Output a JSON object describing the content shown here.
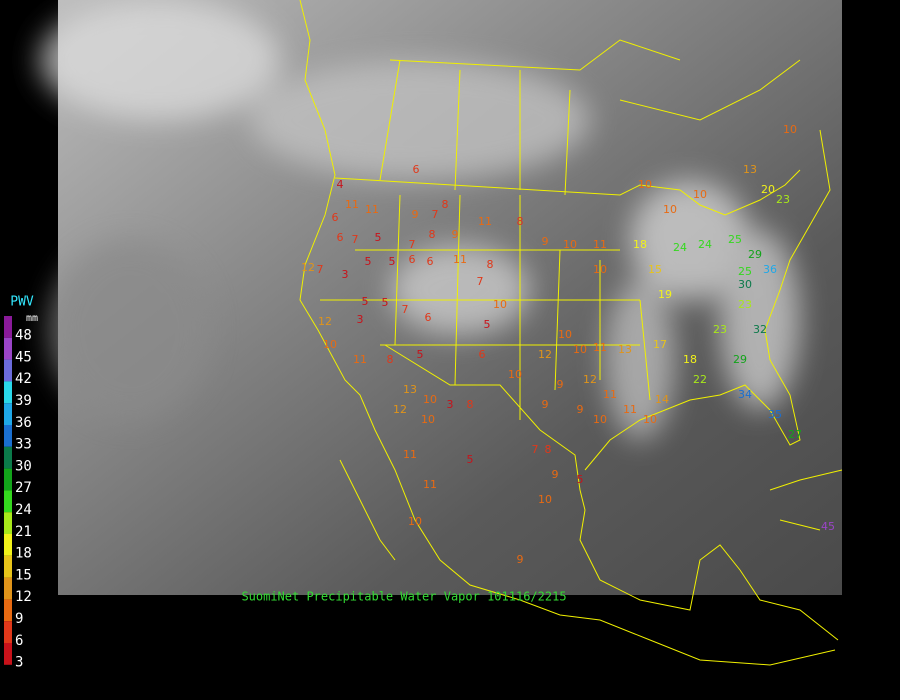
{
  "title": "SuomiNet Precipitable Water Vapor 101116/2215",
  "legend": {
    "title": "PWV",
    "unit": "mm",
    "levels": [
      {
        "value": 48,
        "color": "#8a1a9a"
      },
      {
        "value": 45,
        "color": "#9b45c8"
      },
      {
        "value": 42,
        "color": "#6b6bdc"
      },
      {
        "value": 39,
        "color": "#2ad8ea"
      },
      {
        "value": 36,
        "color": "#1fa8e8"
      },
      {
        "value": 33,
        "color": "#1a6fd0"
      },
      {
        "value": 30,
        "color": "#0b7a4a"
      },
      {
        "value": 27,
        "color": "#12a41a"
      },
      {
        "value": 24,
        "color": "#34d81e"
      },
      {
        "value": 21,
        "color": "#a8e81a"
      },
      {
        "value": 18,
        "color": "#f2f21a"
      },
      {
        "value": 15,
        "color": "#e8c41a"
      },
      {
        "value": 12,
        "color": "#e0941a"
      },
      {
        "value": 9,
        "color": "#e86a12"
      },
      {
        "value": 6,
        "color": "#e0381a"
      },
      {
        "value": 3,
        "color": "#c8121a"
      }
    ]
  },
  "stations": [
    6,
    4,
    11,
    6,
    11,
    9,
    7,
    8,
    6,
    7,
    5,
    7,
    8,
    9,
    11,
    8,
    9,
    10,
    11,
    12,
    7,
    3,
    5,
    5,
    6,
    6,
    11,
    8,
    7,
    10,
    5,
    5,
    5,
    7,
    6,
    3,
    12,
    10,
    11,
    8,
    5,
    6,
    10,
    12,
    10,
    10,
    11,
    13,
    17,
    18,
    9,
    12,
    11,
    9,
    9,
    10,
    11,
    8,
    3,
    10,
    13,
    12,
    10,
    11,
    5,
    7,
    8,
    9,
    5,
    10,
    11,
    9,
    10,
    10,
    18,
    15,
    19,
    24,
    24,
    25,
    29,
    25,
    30,
    36,
    23,
    32,
    23,
    29,
    22,
    34,
    35,
    27,
    14,
    10,
    20,
    23,
    13,
    10,
    10,
    10,
    10,
    45
  ]
}
